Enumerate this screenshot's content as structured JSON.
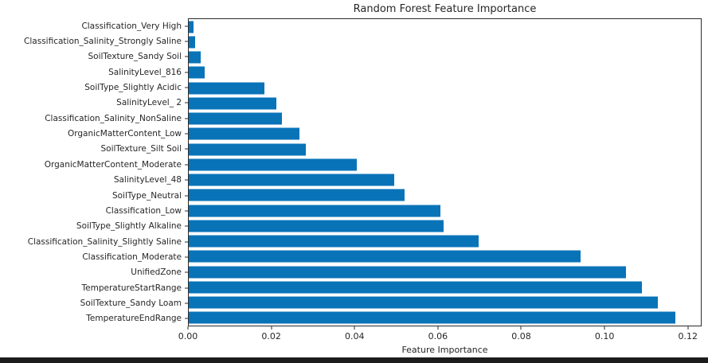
{
  "title": "Random Forest Feature Importance",
  "colors": {
    "bar": "#0973b8",
    "axis": "#2b2b2b",
    "text": "#262626",
    "background": "#ffffff",
    "bottom_strip": "#1c1c1c"
  },
  "chart_data": {
    "type": "bar",
    "orientation": "horizontal",
    "title": "Random Forest Feature Importance",
    "xlabel": "Feature Importance",
    "ylabel": "",
    "xlim": [
      0,
      0.1233
    ],
    "grid": false,
    "legend": null,
    "bar_color": "#0973b8",
    "x_tick_labels": [
      "0.00",
      "0.02",
      "0.04",
      "0.06",
      "0.08",
      "0.10",
      "0.12"
    ],
    "x_tick_values": [
      0.0,
      0.02,
      0.04,
      0.06,
      0.08,
      0.1,
      0.12
    ],
    "categories_top_to_bottom": [
      "Classification_Very High",
      "Classification_Salinity_Strongly Saline",
      "SoilTexture_Sandy Soil",
      "SalinityLevel_816",
      "SoilType_Slightly Acidic",
      "SalinityLevel_ 2",
      "Classification_Salinity_NonSaline",
      "OrganicMatterContent_Low",
      "SoilTexture_Silt Soil",
      "OrganicMatterContent_Moderate",
      "SalinityLevel_48",
      "SoilType_Neutral",
      "Classification_Low",
      "SoilType_Slightly Alkaline",
      "Classification_Salinity_Slightly Saline",
      "Classification_Moderate",
      "UnifiedZone",
      "TemperatureStartRange",
      "SoilTexture_Sandy Loam",
      "TemperatureEndRange"
    ],
    "values_top_to_bottom": [
      0.0012,
      0.0015,
      0.0028,
      0.0038,
      0.0183,
      0.021,
      0.0225,
      0.0267,
      0.0282,
      0.0405,
      0.0495,
      0.052,
      0.0605,
      0.0613,
      0.0698,
      0.0943,
      0.1052,
      0.1091,
      0.1129,
      0.1172
    ]
  }
}
